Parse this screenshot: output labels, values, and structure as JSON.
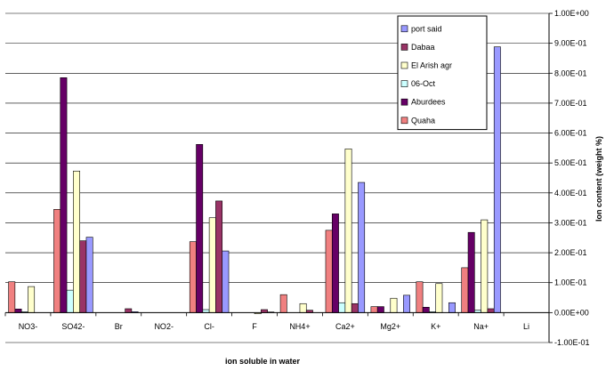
{
  "chart_data": {
    "type": "bar",
    "title": "",
    "xlabel": "ion soluble in water",
    "ylabel": "Ion content  (weight %)",
    "ylim": [
      -0.1,
      1.0
    ],
    "yticks": [
      -0.1,
      0.0,
      0.1,
      0.2,
      0.3,
      0.4,
      0.5,
      0.6,
      0.7,
      0.8,
      0.9,
      1.0
    ],
    "ytick_labels": [
      "-1.00E-01",
      "0.00E+00",
      "1.00E-01",
      "2.00E-01",
      "3.00E-01",
      "4.00E-01",
      "5.00E-01",
      "6.00E-01",
      "7.00E-01",
      "8.00E-01",
      "9.00E-01",
      "1.00E+00"
    ],
    "y_axis_position": "right",
    "grid": true,
    "legend_position": "top-right",
    "categories": [
      "NO3-",
      "SO42-",
      "Br",
      "NO2-",
      "Cl-",
      "F",
      "NH4+",
      "Ca2+",
      "Mg2+",
      "K+",
      "Na+",
      "Li"
    ],
    "series": [
      {
        "name": "Quaha",
        "color": "#F08080",
        "values": [
          0.103,
          0.345,
          0.0,
          0.0,
          0.237,
          0.0,
          0.06,
          0.275,
          0.02,
          0.103,
          0.15,
          0.0
        ]
      },
      {
        "name": "Aburdees",
        "color": "#660066",
        "values": [
          0.012,
          0.785,
          0.0,
          0.0,
          0.562,
          0.0,
          0.0,
          0.33,
          0.02,
          0.018,
          0.268,
          0.0
        ]
      },
      {
        "name": "06-Oct",
        "color": "#CCFFFF",
        "values": [
          0.003,
          0.075,
          0.0,
          0.0,
          0.01,
          0.0,
          0.0,
          0.033,
          0.0,
          0.003,
          0.008,
          0.0
        ]
      },
      {
        "name": "El Arish agr",
        "color": "#FFFFCC",
        "values": [
          0.087,
          0.473,
          0.0,
          0.0,
          0.317,
          -0.004,
          0.03,
          0.547,
          0.048,
          0.097,
          0.31,
          0.0
        ]
      },
      {
        "name": "Dabaa",
        "color": "#993366",
        "values": [
          0.0,
          0.24,
          0.013,
          0.0,
          0.373,
          0.01,
          0.008,
          0.03,
          0.0,
          0.0,
          0.013,
          0.0
        ]
      },
      {
        "name": "port said",
        "color": "#9999FF",
        "values": [
          0.0,
          0.252,
          0.003,
          0.0,
          0.206,
          0.002,
          0.0,
          0.435,
          0.058,
          0.033,
          0.888,
          0.0
        ]
      }
    ],
    "legend_order": [
      "port said",
      "Dabaa",
      "El Arish agr",
      "06-Oct",
      "Aburdees",
      "Quaha"
    ]
  }
}
